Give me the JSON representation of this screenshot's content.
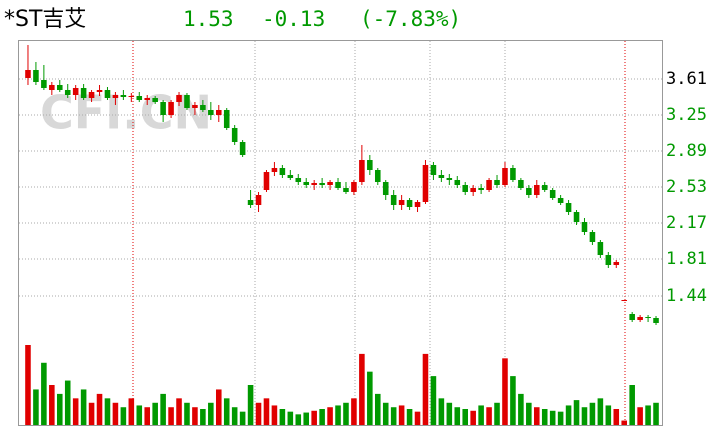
{
  "chart_data": {
    "type": "candlestick",
    "title": "*ST吉艾",
    "price": "1.53",
    "change": "-0.13",
    "change_pct": "(-7.83%)",
    "watermark": "CFI.CN",
    "up_color": "#e00000",
    "down_color": "#009900",
    "ylim": [
      1.0,
      4.0
    ],
    "yticks": [
      3.61,
      3.25,
      2.89,
      2.53,
      2.17,
      1.81,
      1.44
    ],
    "grid": true,
    "open": [
      3.62,
      3.7,
      3.6,
      3.5,
      3.55,
      3.5,
      3.45,
      3.52,
      3.42,
      3.48,
      3.5,
      3.42,
      3.45,
      3.43,
      3.44,
      3.4,
      3.42,
      3.38,
      3.25,
      3.38,
      3.45,
      3.32,
      3.35,
      3.3,
      3.25,
      3.3,
      3.12,
      2.98,
      2.4,
      2.35,
      2.5,
      2.68,
      2.72,
      2.65,
      2.62,
      2.58,
      2.55,
      2.57,
      2.55,
      2.58,
      2.52,
      2.48,
      2.58,
      2.8,
      2.7,
      2.58,
      2.45,
      2.35,
      2.4,
      2.33,
      2.38,
      2.75,
      2.65,
      2.62,
      2.6,
      2.55,
      2.48,
      2.52,
      2.5,
      2.6,
      2.55,
      2.72,
      2.6,
      2.52,
      2.45,
      2.55,
      2.5,
      2.42,
      2.37,
      2.28,
      2.18,
      2.08,
      1.98,
      1.85,
      1.75,
      1.4,
      1.26,
      1.2,
      1.23,
      1.22
    ],
    "high": [
      3.95,
      3.78,
      3.75,
      3.58,
      3.6,
      3.56,
      3.55,
      3.56,
      3.5,
      3.55,
      3.53,
      3.48,
      3.5,
      3.47,
      3.48,
      3.45,
      3.44,
      3.4,
      3.4,
      3.48,
      3.47,
      3.38,
      3.4,
      3.38,
      3.35,
      3.32,
      3.15,
      3.0,
      2.5,
      2.48,
      2.7,
      2.78,
      2.75,
      2.7,
      2.66,
      2.62,
      2.6,
      2.62,
      2.6,
      2.62,
      2.58,
      2.6,
      2.95,
      2.85,
      2.72,
      2.6,
      2.5,
      2.45,
      2.42,
      2.4,
      2.8,
      2.78,
      2.7,
      2.66,
      2.64,
      2.58,
      2.55,
      2.56,
      2.62,
      2.65,
      2.78,
      2.75,
      2.62,
      2.55,
      2.6,
      2.58,
      2.52,
      2.45,
      2.4,
      2.3,
      2.22,
      2.1,
      2.0,
      1.88,
      1.8,
      1.4,
      1.28,
      1.25,
      1.25,
      1.24
    ],
    "low": [
      3.55,
      3.55,
      3.5,
      3.45,
      3.48,
      3.42,
      3.4,
      3.4,
      3.38,
      3.44,
      3.4,
      3.35,
      3.4,
      3.38,
      3.38,
      3.35,
      3.36,
      3.18,
      3.22,
      3.34,
      3.3,
      3.25,
      3.28,
      3.2,
      3.18,
      3.1,
      2.95,
      2.83,
      2.32,
      2.28,
      2.48,
      2.64,
      2.62,
      2.6,
      2.55,
      2.52,
      2.5,
      2.52,
      2.5,
      2.5,
      2.46,
      2.45,
      2.55,
      2.65,
      2.55,
      2.4,
      2.3,
      2.3,
      2.3,
      2.28,
      2.36,
      2.6,
      2.58,
      2.55,
      2.52,
      2.45,
      2.44,
      2.46,
      2.48,
      2.52,
      2.53,
      2.58,
      2.5,
      2.42,
      2.42,
      2.48,
      2.4,
      2.35,
      2.25,
      2.15,
      2.05,
      1.95,
      1.82,
      1.72,
      1.72,
      1.4,
      1.18,
      1.18,
      1.18,
      1.15
    ],
    "close": [
      3.7,
      3.58,
      3.52,
      3.55,
      3.5,
      3.45,
      3.52,
      3.42,
      3.48,
      3.5,
      3.42,
      3.45,
      3.43,
      3.44,
      3.4,
      3.42,
      3.38,
      3.25,
      3.38,
      3.45,
      3.32,
      3.35,
      3.3,
      3.25,
      3.3,
      3.12,
      2.98,
      2.85,
      2.35,
      2.45,
      2.68,
      2.72,
      2.65,
      2.62,
      2.58,
      2.55,
      2.57,
      2.55,
      2.58,
      2.52,
      2.48,
      2.58,
      2.8,
      2.7,
      2.58,
      2.45,
      2.35,
      2.4,
      2.33,
      2.38,
      2.75,
      2.65,
      2.62,
      2.6,
      2.55,
      2.48,
      2.52,
      2.5,
      2.6,
      2.55,
      2.72,
      2.6,
      2.52,
      2.45,
      2.55,
      2.5,
      2.42,
      2.37,
      2.28,
      2.18,
      2.08,
      1.98,
      1.85,
      1.75,
      1.78,
      1.4,
      1.2,
      1.23,
      1.22,
      1.17
    ],
    "volume": [
      90,
      40,
      70,
      45,
      35,
      50,
      30,
      40,
      25,
      35,
      30,
      25,
      20,
      30,
      22,
      20,
      25,
      35,
      20,
      30,
      25,
      20,
      18,
      25,
      40,
      30,
      20,
      15,
      45,
      25,
      30,
      22,
      18,
      15,
      12,
      14,
      16,
      18,
      20,
      22,
      25,
      30,
      80,
      60,
      35,
      25,
      20,
      22,
      18,
      15,
      80,
      55,
      30,
      25,
      20,
      18,
      16,
      22,
      20,
      25,
      75,
      55,
      35,
      25,
      20,
      18,
      16,
      15,
      22,
      28,
      20,
      25,
      30,
      22,
      18,
      5,
      45,
      20,
      22,
      25
    ]
  }
}
